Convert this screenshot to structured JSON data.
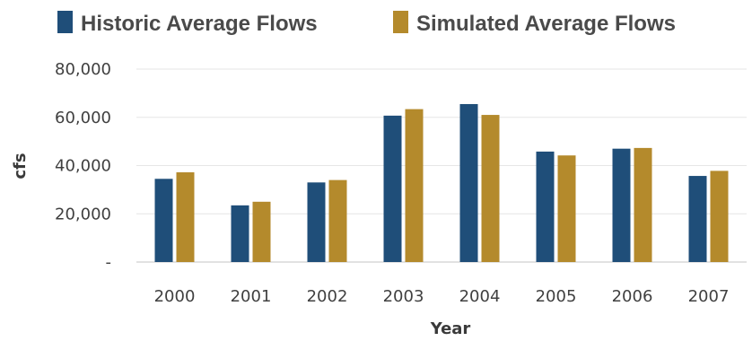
{
  "chart_data": {
    "type": "bar",
    "categories": [
      "2000",
      "2001",
      "2002",
      "2003",
      "2004",
      "2005",
      "2006",
      "2007"
    ],
    "series": [
      {
        "name": "Historic Average Flows",
        "color": "#1f4e79",
        "values": [
          34500,
          23500,
          33000,
          60700,
          65500,
          45800,
          47000,
          35700
        ]
      },
      {
        "name": "Simulated Average Flows",
        "color": "#b48a2c",
        "values": [
          37200,
          25000,
          34000,
          63400,
          61000,
          44200,
          47300,
          37800
        ]
      }
    ],
    "title": "",
    "xlabel": "Year",
    "ylabel": "cfs",
    "ylim": [
      0,
      80000
    ],
    "yticks": [
      {
        "value": 0,
        "label": "-"
      },
      {
        "value": 20000,
        "label": "20,000"
      },
      {
        "value": 40000,
        "label": "40,000"
      },
      {
        "value": 60000,
        "label": "60,000"
      },
      {
        "value": 80000,
        "label": "80,000"
      }
    ],
    "grid": true,
    "legend_position": "top"
  }
}
